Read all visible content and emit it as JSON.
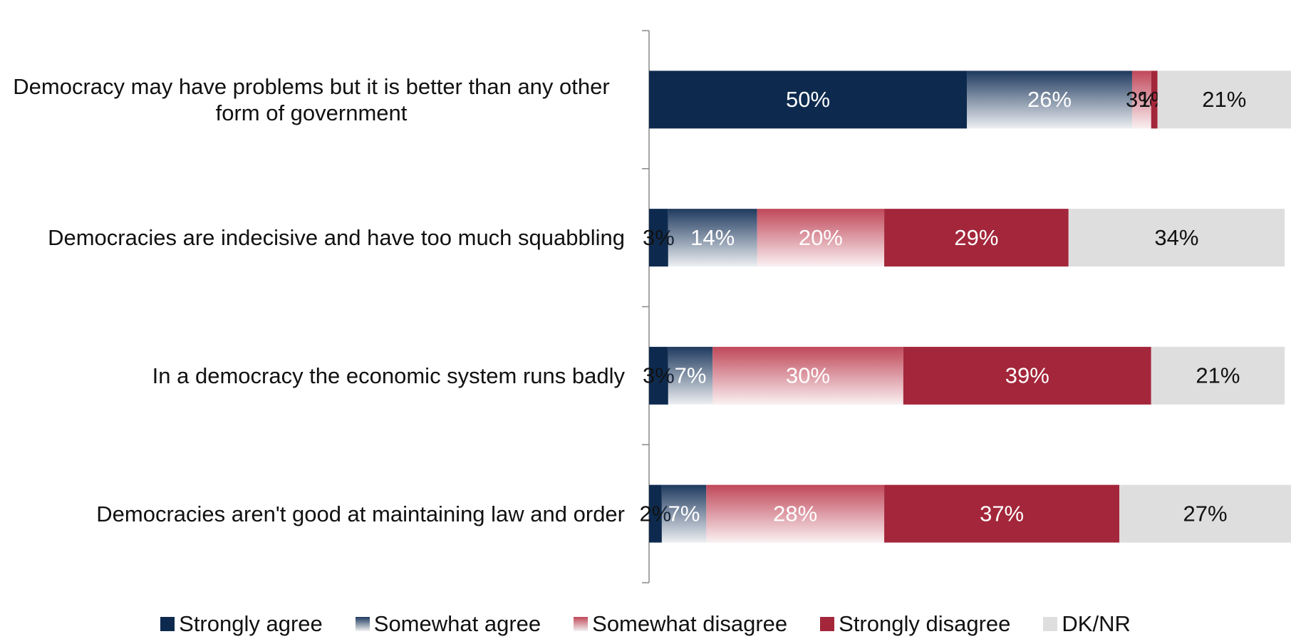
{
  "chart_data": {
    "type": "stacked-bar-horizontal",
    "categories": [
      "Democracy may have problems but it is better than any other form of government",
      "Democracies are indecisive and have too much squabbling",
      "In a democracy the economic system runs badly",
      "Democracies aren't good at maintaining law and order"
    ],
    "series": [
      {
        "name": "Strongly agree",
        "color": "#0d2a4e",
        "values": [
          50,
          3,
          3,
          2
        ],
        "value_labels": [
          "50%",
          "3%",
          "3%",
          "2%"
        ]
      },
      {
        "name": "Somewhat agree",
        "color": "#1f3a5f",
        "gradient": true,
        "values": [
          26,
          14,
          7,
          7
        ],
        "value_labels": [
          "26%",
          "14%",
          "7%",
          "7%"
        ]
      },
      {
        "name": "Somewhat disagree",
        "color": "#c0485a",
        "gradient": true,
        "values": [
          3,
          20,
          30,
          28
        ],
        "value_labels": [
          "3%",
          "20%",
          "30%",
          "28%"
        ]
      },
      {
        "name": "Strongly disagree",
        "color": "#a3263a",
        "values": [
          1,
          29,
          39,
          37
        ],
        "value_labels": [
          "1%",
          "29%",
          "39%",
          "37%"
        ]
      },
      {
        "name": "DK/NR",
        "color": "#dedede",
        "values": [
          21,
          34,
          21,
          27
        ],
        "value_labels": [
          "21%",
          "34%",
          "21%",
          "27%"
        ]
      }
    ]
  }
}
